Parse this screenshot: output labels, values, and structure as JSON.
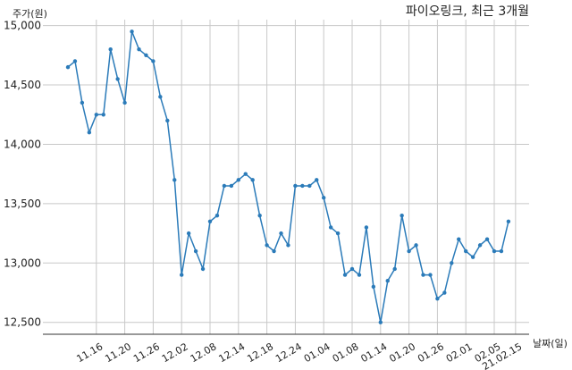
{
  "chart_data": {
    "type": "line",
    "title": "파이오링크, 최근 3개월",
    "ylabel": "주가(원)",
    "xlabel": "날짜(일)",
    "ylim": [
      12400,
      15050
    ],
    "yticks": [
      12500,
      13000,
      13500,
      14000,
      14500,
      15000
    ],
    "ytick_labels": [
      "12,500",
      "13,000",
      "13,500",
      "14,000",
      "14,500",
      "15,000"
    ],
    "xticks": [
      {
        "label": "11.16",
        "index": 4
      },
      {
        "label": "11.20",
        "index": 8
      },
      {
        "label": "11.26",
        "index": 12
      },
      {
        "label": "12.02",
        "index": 16
      },
      {
        "label": "12.08",
        "index": 20
      },
      {
        "label": "12.14",
        "index": 24
      },
      {
        "label": "12.18",
        "index": 28
      },
      {
        "label": "12.24",
        "index": 32
      },
      {
        "label": "01.04",
        "index": 36
      },
      {
        "label": "01.08",
        "index": 40
      },
      {
        "label": "01.14",
        "index": 44
      },
      {
        "label": "01.20",
        "index": 48
      },
      {
        "label": "01.26",
        "index": 52
      },
      {
        "label": "02.01",
        "index": 56
      },
      {
        "label": "02.05",
        "index": 60
      },
      {
        "label": "21.02.15",
        "index": 63
      }
    ],
    "grid": true,
    "values": [
      14650,
      14700,
      14350,
      14100,
      14250,
      14250,
      14800,
      14550,
      14350,
      14950,
      14800,
      14750,
      14700,
      14400,
      14200,
      13700,
      12900,
      13250,
      13100,
      12950,
      13350,
      13400,
      13650,
      13650,
      13700,
      13750,
      13700,
      13400,
      13150,
      13100,
      13250,
      13150,
      13650,
      13650,
      13650,
      13700,
      13550,
      13300,
      13250,
      12900,
      12950,
      12900,
      13300,
      12800,
      12500,
      12850,
      12950,
      13400,
      13100,
      13150,
      12900,
      12900,
      12700,
      12750,
      13000,
      13200,
      13100,
      13050,
      13150,
      13200,
      13100,
      13100,
      13350
    ],
    "color": "#2b7bb9"
  }
}
